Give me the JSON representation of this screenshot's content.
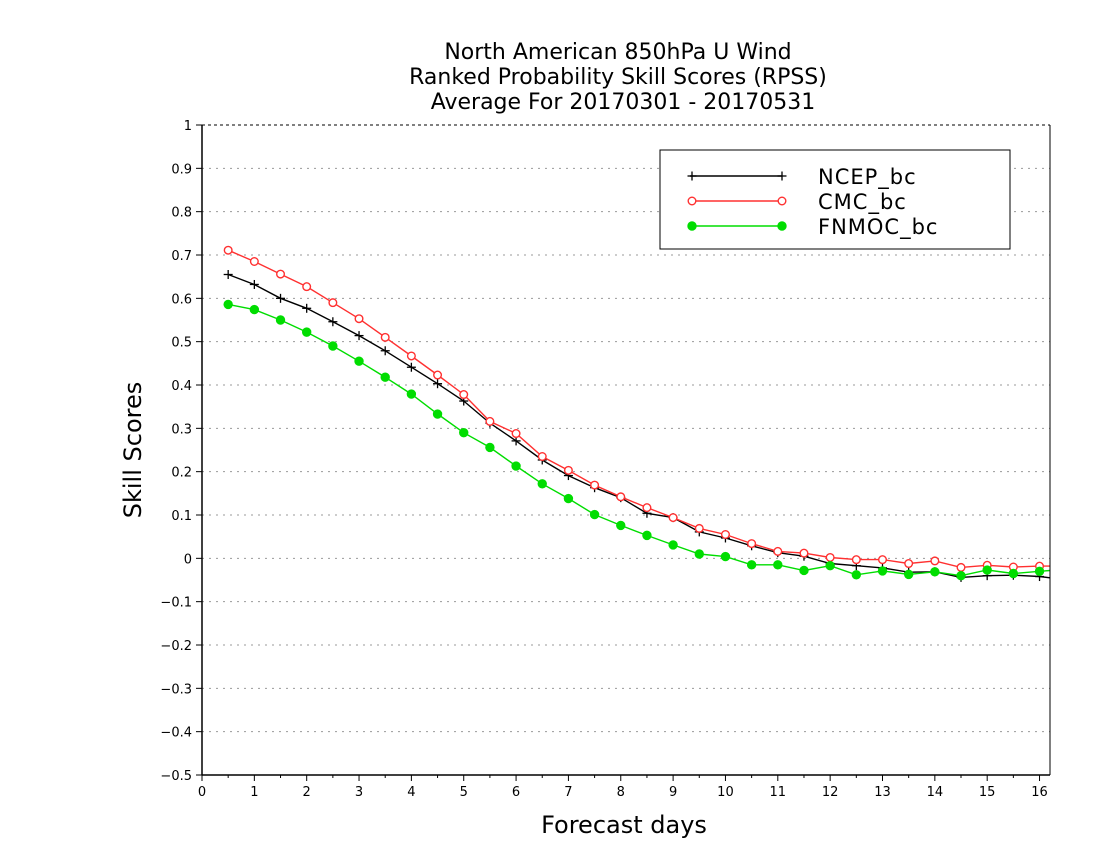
{
  "chart_data": {
    "type": "line",
    "title_lines": [
      "North American 850hPa U Wind",
      "Ranked Probability Skill Scores (RPSS)",
      "Average For 20170301 - 20170531"
    ],
    "xlabel": "Forecast days",
    "ylabel": "Skill Scores",
    "xlim": [
      0,
      16.2
    ],
    "ylim": [
      -0.5,
      1
    ],
    "xticks": [
      0,
      1,
      2,
      3,
      4,
      5,
      6,
      7,
      8,
      9,
      10,
      11,
      12,
      13,
      14,
      15,
      16
    ],
    "yticks": [
      -0.5,
      -0.4,
      -0.3,
      -0.2,
      -0.1,
      0,
      0.1,
      0.2,
      0.3,
      0.4,
      0.5,
      0.6,
      0.7,
      0.8,
      0.9,
      1
    ],
    "ytick_labels": [
      "−0.5",
      "−0.4",
      "−0.3",
      "−0.2",
      "−0.1",
      "0",
      "0.1",
      "0.2",
      "0.3",
      "0.4",
      "0.5",
      "0.6",
      "0.7",
      "0.8",
      "0.9",
      "1"
    ],
    "grid": true,
    "legend_position": "top-right",
    "x": [
      0.5,
      1,
      1.5,
      2,
      2.5,
      3,
      3.5,
      4,
      4.5,
      5,
      5.5,
      6,
      6.5,
      7,
      7.5,
      8,
      8.5,
      9,
      9.5,
      10,
      10.5,
      11,
      11.5,
      12,
      12.5,
      13,
      13.5,
      14,
      14.5,
      15,
      15.5,
      16,
      16.2
    ],
    "series": [
      {
        "name": "NCEP_bc",
        "color": "#000000",
        "marker": "plus",
        "values": [
          0.655,
          0.632,
          0.6,
          0.577,
          0.546,
          0.514,
          0.479,
          0.441,
          0.403,
          0.363,
          0.312,
          0.271,
          0.227,
          0.191,
          0.163,
          0.14,
          0.104,
          0.094,
          0.061,
          0.047,
          0.029,
          0.013,
          0.005,
          -0.012,
          -0.017,
          -0.022,
          -0.032,
          -0.031,
          -0.044,
          -0.04,
          -0.039,
          -0.042,
          -0.045
        ]
      },
      {
        "name": "CMC_bc",
        "color": "#ff3030",
        "marker": "open-circle",
        "values": [
          0.711,
          0.685,
          0.656,
          0.627,
          0.59,
          0.553,
          0.51,
          0.467,
          0.423,
          0.378,
          0.316,
          0.288,
          0.235,
          0.203,
          0.169,
          0.142,
          0.117,
          0.094,
          0.069,
          0.055,
          0.034,
          0.016,
          0.012,
          0.002,
          -0.003,
          -0.003,
          -0.012,
          -0.006,
          -0.021,
          -0.016,
          -0.02,
          -0.018,
          -0.018
        ]
      },
      {
        "name": "FNMOC_bc",
        "color": "#00dd00",
        "marker": "filled-circle",
        "values": [
          0.586,
          0.574,
          0.55,
          0.522,
          0.49,
          0.455,
          0.418,
          0.379,
          0.333,
          0.29,
          0.256,
          0.213,
          0.172,
          0.138,
          0.101,
          0.076,
          0.053,
          0.031,
          0.01,
          0.004,
          -0.015,
          -0.015,
          -0.028,
          -0.017,
          -0.038,
          -0.029,
          -0.037,
          -0.031,
          -0.04,
          -0.027,
          -0.035,
          -0.03,
          -0.028
        ]
      }
    ]
  }
}
